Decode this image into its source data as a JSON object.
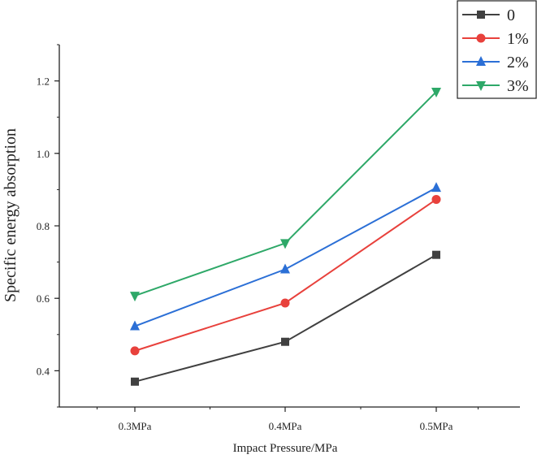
{
  "chart_data": {
    "type": "line",
    "title": "",
    "xlabel": "Impact Pressure/MPa",
    "ylabel": "Specific energy absorption",
    "categories": [
      "0.3MPa",
      "0.4MPa",
      "0.5MPa"
    ],
    "yticks": [
      "0.4",
      "0.6",
      "0.8",
      "1.0",
      "1.2"
    ],
    "ylim": [
      0.3,
      1.3
    ],
    "legend_position": "top-right",
    "series": [
      {
        "name": "0",
        "values": [
          0.37,
          0.48,
          0.72
        ],
        "color": "#404040",
        "marker": "square"
      },
      {
        "name": "1%",
        "values": [
          0.455,
          0.587,
          0.873
        ],
        "color": "#e8413c",
        "marker": "circle"
      },
      {
        "name": "2%",
        "values": [
          0.523,
          0.68,
          0.905
        ],
        "color": "#2b6fd6",
        "marker": "triangle-up"
      },
      {
        "name": "3%",
        "values": [
          0.607,
          0.752,
          1.17
        ],
        "color": "#2ea868",
        "marker": "triangle-down"
      }
    ]
  }
}
